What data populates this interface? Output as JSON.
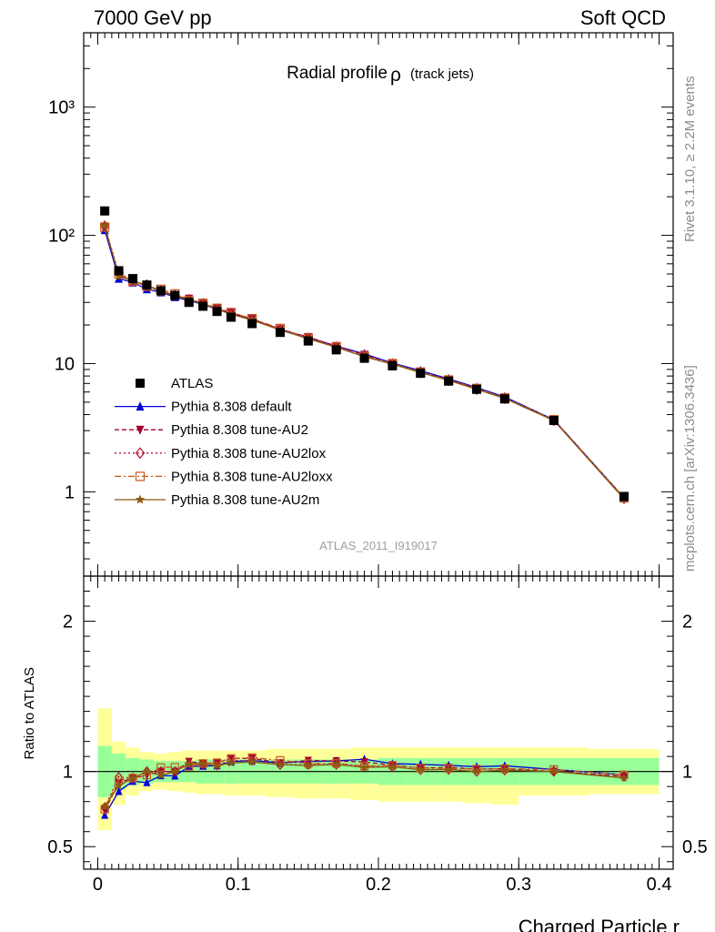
{
  "header": {
    "left": "7000 GeV pp",
    "right": "Soft QCD"
  },
  "side": {
    "rivet": "Rivet 3.1.10, ≥ 2.2M events",
    "mcplots": "mcplots.cern.ch [arXiv:1306.3436]"
  },
  "chart_data": {
    "type": "line",
    "title": "Radial profile",
    "title_symbol": "ρ",
    "title_suffix": "(track jets)",
    "watermark": "ATLAS_2011_I919017",
    "xlabel": "Charged Particle r",
    "ylabel_ratio": "Ratio to ATLAS",
    "xlim": [
      -0.01,
      0.41
    ],
    "ylim_main": [
      0.22,
      3800
    ],
    "ylog_main": true,
    "ylim_ratio": [
      0.35,
      2.3
    ],
    "x_ticks": [
      "0",
      "0.1",
      "0.2",
      "0.3",
      "0.4"
    ],
    "y_ticks_main": [
      "1",
      "10",
      "10²",
      "10³"
    ],
    "y_ticks_ratio": [
      "0.5",
      "1",
      "2"
    ],
    "legend_position": "lower-left",
    "x": [
      0.005,
      0.015,
      0.025,
      0.035,
      0.045,
      0.055,
      0.065,
      0.075,
      0.085,
      0.095,
      0.11,
      0.13,
      0.15,
      0.17,
      0.19,
      0.21,
      0.23,
      0.25,
      0.27,
      0.29,
      0.325,
      0.375
    ],
    "x_edges": [
      0.0,
      0.01,
      0.02,
      0.03,
      0.04,
      0.05,
      0.06,
      0.07,
      0.08,
      0.09,
      0.1,
      0.12,
      0.14,
      0.16,
      0.18,
      0.2,
      0.22,
      0.24,
      0.26,
      0.28,
      0.3,
      0.35,
      0.4
    ],
    "band_inner": [
      [
        0.83,
        1.17
      ],
      [
        0.88,
        1.12
      ],
      [
        0.91,
        1.09
      ],
      [
        0.92,
        1.08
      ],
      [
        0.93,
        1.07
      ],
      [
        0.93,
        1.07
      ],
      [
        0.93,
        1.07
      ],
      [
        0.92,
        1.08
      ],
      [
        0.92,
        1.08
      ],
      [
        0.92,
        1.08
      ],
      [
        0.92,
        1.08
      ],
      [
        0.92,
        1.08
      ],
      [
        0.92,
        1.08
      ],
      [
        0.92,
        1.08
      ],
      [
        0.92,
        1.08
      ],
      [
        0.91,
        1.09
      ],
      [
        0.91,
        1.09
      ],
      [
        0.91,
        1.09
      ],
      [
        0.91,
        1.09
      ],
      [
        0.91,
        1.09
      ],
      [
        0.91,
        1.09
      ],
      [
        0.91,
        1.09
      ]
    ],
    "band_outer": [
      [
        0.61,
        1.42
      ],
      [
        0.78,
        1.2
      ],
      [
        0.84,
        1.16
      ],
      [
        0.87,
        1.13
      ],
      [
        0.88,
        1.12
      ],
      [
        0.87,
        1.13
      ],
      [
        0.86,
        1.14
      ],
      [
        0.85,
        1.14
      ],
      [
        0.85,
        1.14
      ],
      [
        0.84,
        1.14
      ],
      [
        0.84,
        1.14
      ],
      [
        0.83,
        1.15
      ],
      [
        0.82,
        1.15
      ],
      [
        0.82,
        1.15
      ],
      [
        0.81,
        1.16
      ],
      [
        0.8,
        1.16
      ],
      [
        0.8,
        1.16
      ],
      [
        0.8,
        1.16
      ],
      [
        0.79,
        1.16
      ],
      [
        0.78,
        1.16
      ],
      [
        0.84,
        1.16
      ],
      [
        0.85,
        1.15
      ]
    ],
    "data": {
      "name": "ATLAS",
      "color": "#000000",
      "values": [
        155,
        53,
        46,
        41,
        37,
        34,
        30,
        28,
        25.5,
        23,
        20.5,
        17.5,
        15,
        12.8,
        11.0,
        9.6,
        8.4,
        7.3,
        6.3,
        5.3,
        3.6,
        0.92
      ]
    },
    "series": [
      {
        "name": "Pythia 8.308 default",
        "color": "#0000d9",
        "marker": "triangle-up",
        "dash": "",
        "values": [
          110,
          46,
          43,
          38,
          36,
          33,
          31,
          29,
          26.5,
          24.5,
          22,
          18.5,
          16,
          13.7,
          11.9,
          10.1,
          8.8,
          7.6,
          6.5,
          5.5,
          3.65,
          0.9
        ]
      },
      {
        "name": "Pythia 8.308 tune-AU2",
        "color": "#a00030",
        "marker": "triangle-down",
        "dash": "5,3",
        "values": [
          115,
          49,
          44,
          40,
          37,
          34,
          32,
          29.5,
          27,
          25,
          22.3,
          18.5,
          16.1,
          13.7,
          11.7,
          10.0,
          8.6,
          7.5,
          6.4,
          5.4,
          3.6,
          0.89
        ]
      },
      {
        "name": "Pythia 8.308 tune-AU2lox",
        "color": "#b01030",
        "marker": "diamond-open",
        "dash": "2,3",
        "values": [
          118,
          51,
          44,
          41,
          37,
          34,
          31.5,
          29.3,
          26.6,
          24.7,
          22,
          18.3,
          15.7,
          13.4,
          11.4,
          9.9,
          8.5,
          7.4,
          6.3,
          5.35,
          3.6,
          0.89
        ]
      },
      {
        "name": "Pythia 8.308 tune-AU2loxx",
        "color": "#cc5522",
        "marker": "square-open",
        "dash": "7,3,2,3",
        "values": [
          116,
          50,
          44,
          40,
          38,
          35,
          31,
          29.5,
          27,
          25,
          22.4,
          18.8,
          15.8,
          13.5,
          11.4,
          10.0,
          8.6,
          7.45,
          6.4,
          5.4,
          3.65,
          0.9
        ]
      },
      {
        "name": "Pythia 8.308 tune-AU2m",
        "color": "#8b5a10",
        "marker": "star",
        "dash": "",
        "values": [
          119,
          48,
          44,
          41,
          36,
          34,
          31.5,
          29.5,
          26.5,
          24.3,
          21.8,
          18.3,
          15.6,
          13.4,
          11.3,
          9.9,
          8.5,
          7.4,
          6.3,
          5.35,
          3.6,
          0.88
        ]
      }
    ]
  }
}
